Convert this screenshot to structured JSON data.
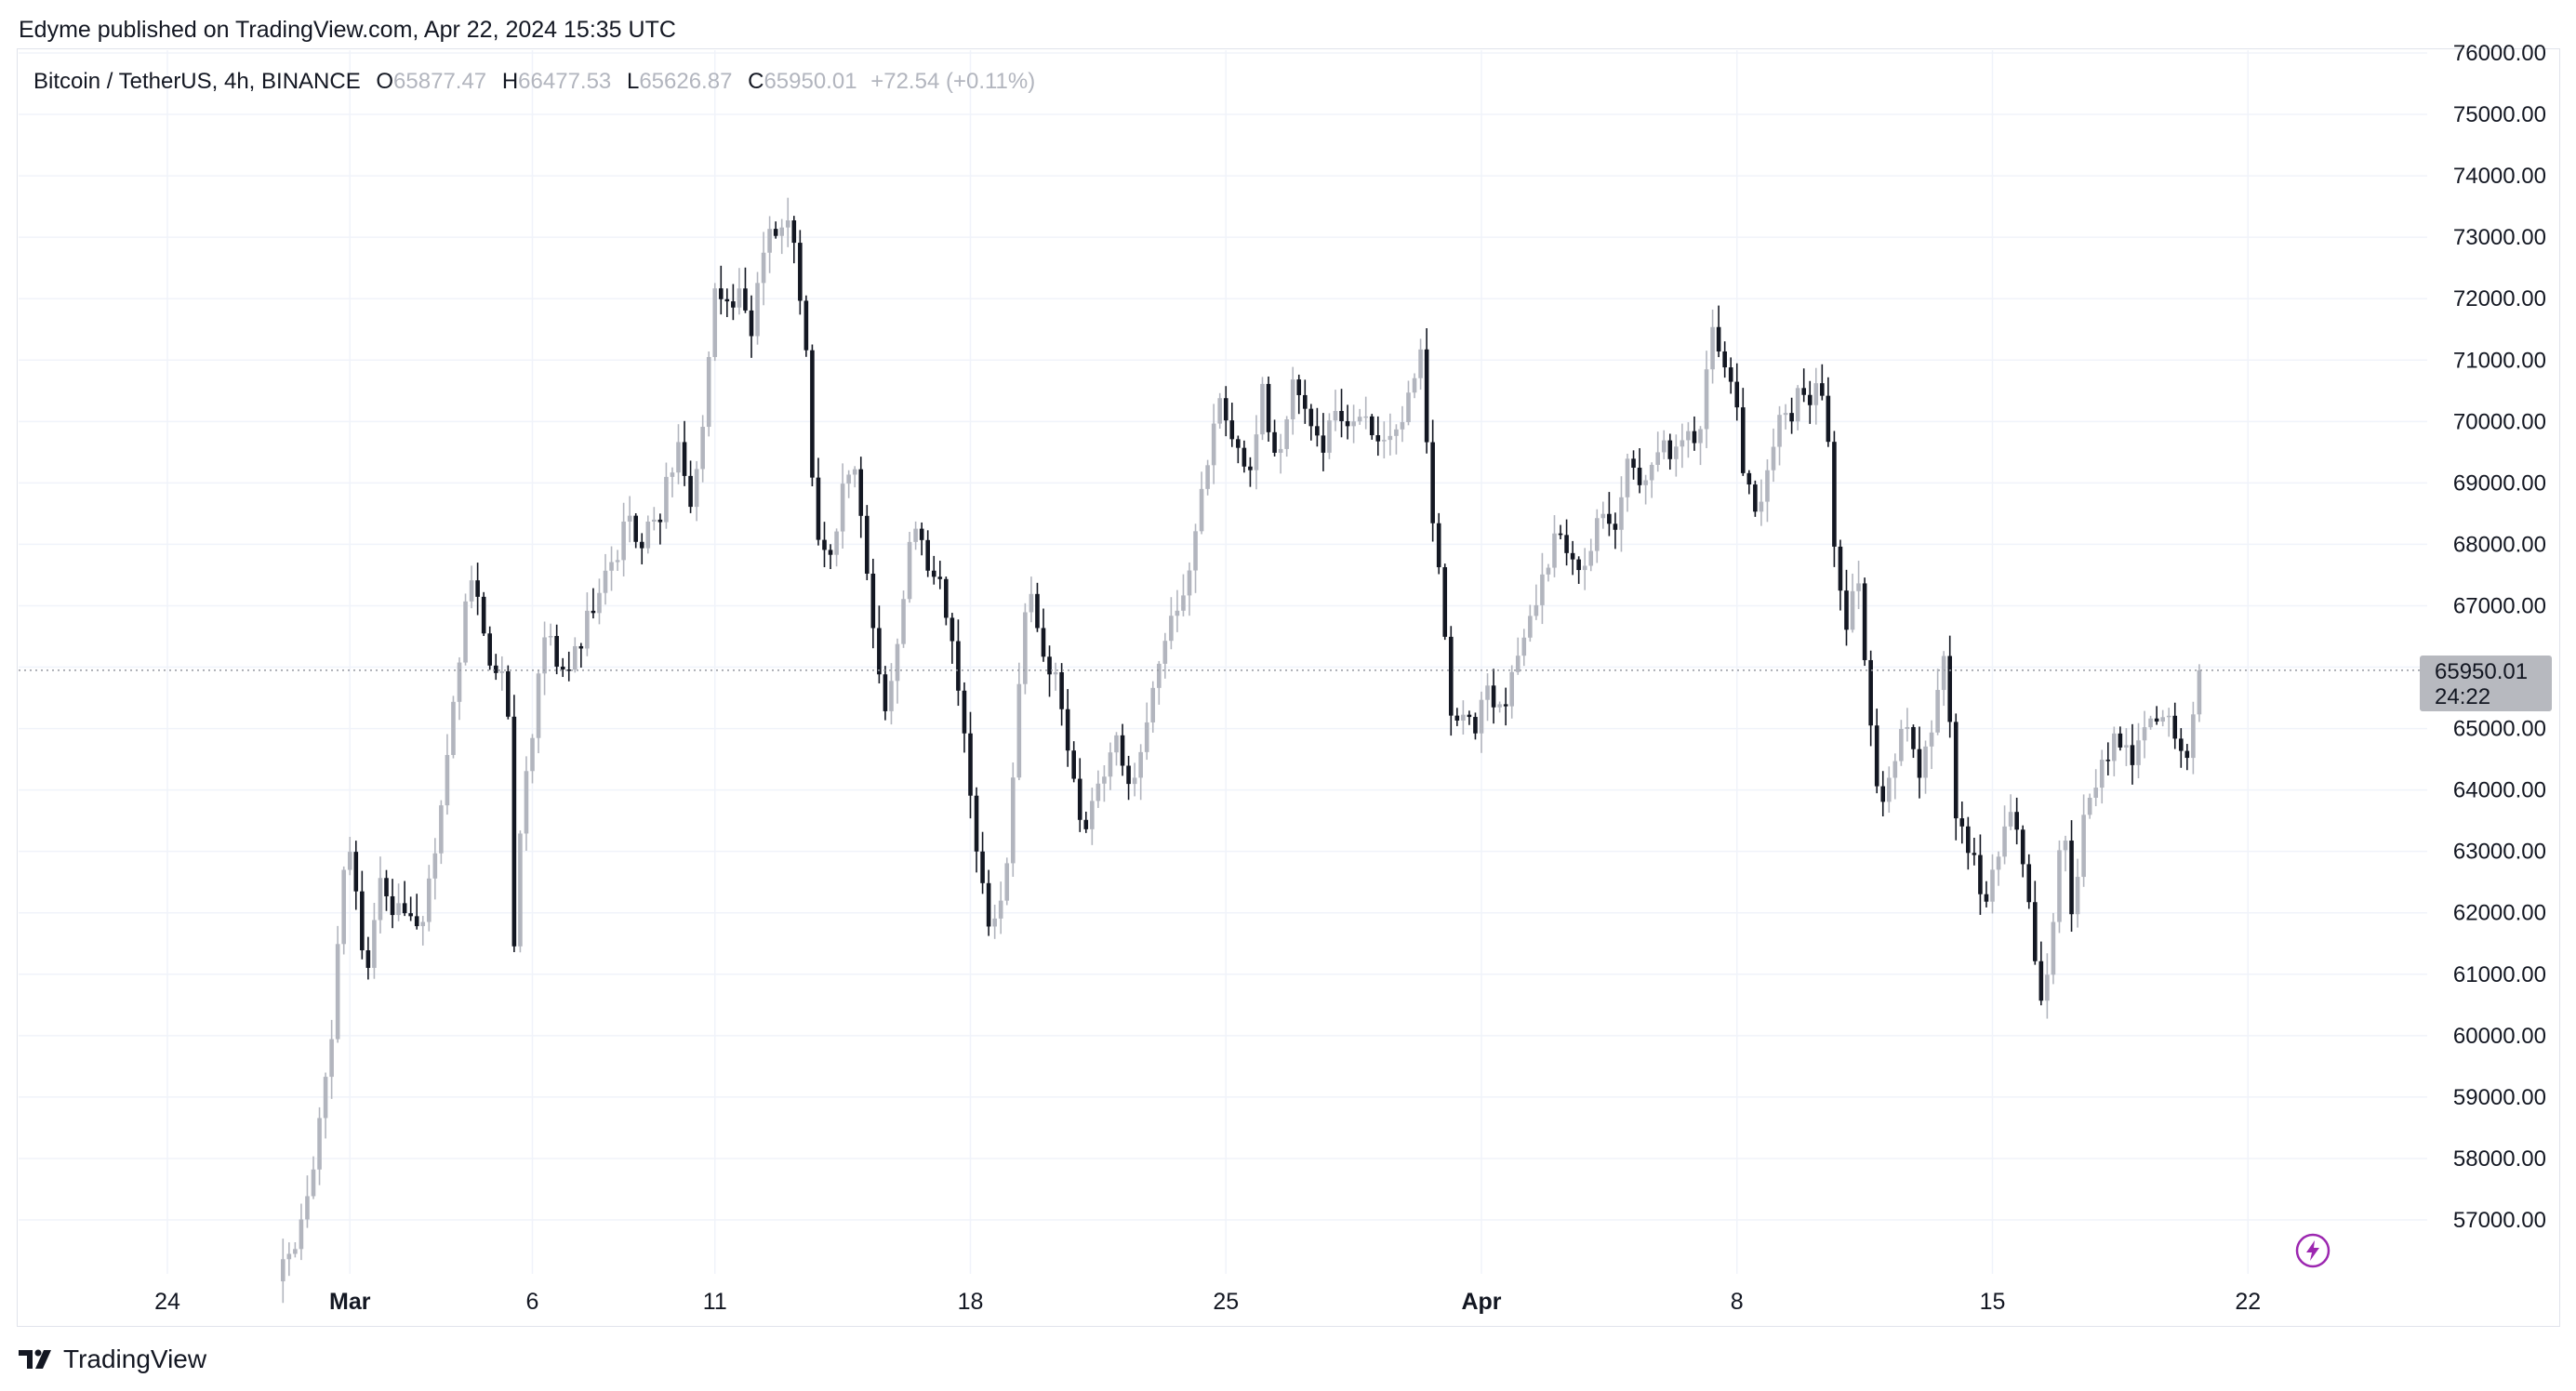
{
  "header": {
    "published": "Edyme published on TradingView.com, Apr 22, 2024 15:35 UTC"
  },
  "legend": {
    "symbol": "Bitcoin / TetherUS, 4h, BINANCE",
    "open_key": "O",
    "open": "65877.47",
    "high_key": "H",
    "high": "66477.53",
    "low_key": "L",
    "low": "65626.87",
    "close_key": "C",
    "close": "65950.01",
    "change": "+72.54 (+0.11%)"
  },
  "price_tag": {
    "price": "65950.01",
    "countdown": "24:22"
  },
  "footer": {
    "brand": "TradingView"
  },
  "colors": {
    "up": "#b2b5be",
    "down": "#131722",
    "grid": "#f0f3fa",
    "dotted": "#9598a1",
    "accent": "#9c27b0"
  },
  "chart_data": {
    "type": "candlestick",
    "ylim": [
      56000,
      76000
    ],
    "y_ticks": [
      "57000.00",
      "58000.00",
      "59000.00",
      "60000.00",
      "61000.00",
      "62000.00",
      "63000.00",
      "64000.00",
      "65000.00",
      "66000.00",
      "67000.00",
      "68000.00",
      "69000.00",
      "70000.00",
      "71000.00",
      "72000.00",
      "73000.00",
      "74000.00",
      "75000.00",
      "76000.00"
    ],
    "x_ticks": [
      {
        "label": "24",
        "day": -4,
        "bold": false
      },
      {
        "label": "Mar",
        "day": 1,
        "bold": true
      },
      {
        "label": "6",
        "day": 6,
        "bold": false
      },
      {
        "label": "11",
        "day": 11,
        "bold": false
      },
      {
        "label": "18",
        "day": 18,
        "bold": false
      },
      {
        "label": "25",
        "day": 25,
        "bold": false
      },
      {
        "label": "Apr",
        "day": 32,
        "bold": true
      },
      {
        "label": "8",
        "day": 39,
        "bold": false
      },
      {
        "label": "15",
        "day": 46,
        "bold": false
      },
      {
        "label": "22",
        "day": 53,
        "bold": false
      }
    ],
    "current_price": 65950.01,
    "anchors": [
      [
        -1.0,
        56000
      ],
      [
        -0.5,
        56600
      ],
      [
        -0.2,
        57300
      ],
      [
        0.0,
        57900
      ],
      [
        -0.4,
        56800
      ],
      [
        0.2,
        58600
      ],
      [
        0.5,
        60000
      ],
      [
        0.8,
        62500
      ],
      [
        1.0,
        62800
      ],
      [
        1.3,
        61700
      ],
      [
        1.5,
        61100
      ],
      [
        1.8,
        62500
      ],
      [
        2.2,
        62100
      ],
      [
        2.6,
        61900
      ],
      [
        3.0,
        61800
      ],
      [
        3.3,
        62900
      ],
      [
        3.7,
        64800
      ],
      [
        4.0,
        66000
      ],
      [
        4.3,
        67600
      ],
      [
        4.7,
        66300
      ],
      [
        5.0,
        66000
      ],
      [
        5.3,
        65900
      ],
      [
        5.5,
        61500
      ],
      [
        5.7,
        63600
      ],
      [
        6.0,
        64800
      ],
      [
        6.3,
        66700
      ],
      [
        6.7,
        66000
      ],
      [
        7.0,
        66000
      ],
      [
        7.4,
        66600
      ],
      [
        7.8,
        67300
      ],
      [
        8.2,
        67700
      ],
      [
        8.6,
        68400
      ],
      [
        9.0,
        68000
      ],
      [
        9.5,
        68500
      ],
      [
        10.0,
        69700
      ],
      [
        10.3,
        68400
      ],
      [
        10.6,
        69500
      ],
      [
        11.0,
        72100
      ],
      [
        11.4,
        71900
      ],
      [
        11.7,
        72300
      ],
      [
        12.0,
        71400
      ],
      [
        12.4,
        73000
      ],
      [
        12.8,
        73300
      ],
      [
        13.2,
        72900
      ],
      [
        13.5,
        71000
      ],
      [
        13.8,
        67900
      ],
      [
        14.1,
        67600
      ],
      [
        14.5,
        68800
      ],
      [
        14.8,
        69400
      ],
      [
        15.0,
        68600
      ],
      [
        15.4,
        66300
      ],
      [
        15.7,
        65200
      ],
      [
        16.0,
        66400
      ],
      [
        16.4,
        68400
      ],
      [
        16.8,
        67700
      ],
      [
        17.2,
        67400
      ],
      [
        17.6,
        66200
      ],
      [
        18.0,
        63700
      ],
      [
        18.3,
        62500
      ],
      [
        18.6,
        61700
      ],
      [
        19.0,
        62900
      ],
      [
        19.3,
        65500
      ],
      [
        19.6,
        67600
      ],
      [
        20.0,
        66200
      ],
      [
        20.4,
        65900
      ],
      [
        20.7,
        64400
      ],
      [
        21.1,
        63400
      ],
      [
        21.5,
        63900
      ],
      [
        22.0,
        65000
      ],
      [
        22.4,
        64000
      ],
      [
        22.8,
        64900
      ],
      [
        23.2,
        66200
      ],
      [
        23.6,
        66900
      ],
      [
        24.0,
        67700
      ],
      [
        24.4,
        69100
      ],
      [
        24.8,
        70500
      ],
      [
        25.2,
        69500
      ],
      [
        25.6,
        69100
      ],
      [
        26.0,
        70500
      ],
      [
        26.4,
        69300
      ],
      [
        26.8,
        70600
      ],
      [
        27.2,
        70200
      ],
      [
        27.6,
        69600
      ],
      [
        28.0,
        70100
      ],
      [
        28.4,
        69900
      ],
      [
        28.8,
        70300
      ],
      [
        29.2,
        69400
      ],
      [
        29.6,
        69700
      ],
      [
        30.0,
        70300
      ],
      [
        30.4,
        71100
      ],
      [
        30.6,
        68600
      ],
      [
        30.9,
        67200
      ],
      [
        31.2,
        64800
      ],
      [
        31.5,
        65400
      ],
      [
        31.8,
        64900
      ],
      [
        32.1,
        66000
      ],
      [
        32.4,
        65400
      ],
      [
        32.7,
        65500
      ],
      [
        33.0,
        66300
      ],
      [
        33.3,
        66800
      ],
      [
        33.6,
        67400
      ],
      [
        34.0,
        68000
      ],
      [
        34.4,
        67900
      ],
      [
        34.8,
        67400
      ],
      [
        35.2,
        68500
      ],
      [
        35.6,
        68100
      ],
      [
        36.0,
        69200
      ],
      [
        36.4,
        69100
      ],
      [
        36.8,
        69600
      ],
      [
        37.2,
        69400
      ],
      [
        37.6,
        69700
      ],
      [
        38.0,
        69900
      ],
      [
        38.3,
        71600
      ],
      [
        38.6,
        71200
      ],
      [
        38.9,
        70700
      ],
      [
        39.2,
        69200
      ],
      [
        39.5,
        68600
      ],
      [
        39.8,
        68900
      ],
      [
        40.1,
        70200
      ],
      [
        40.4,
        69900
      ],
      [
        40.7,
        70600
      ],
      [
        41.0,
        70400
      ],
      [
        41.4,
        70600
      ],
      [
        41.7,
        67600
      ],
      [
        42.0,
        66700
      ],
      [
        42.3,
        67400
      ],
      [
        42.6,
        65600
      ],
      [
        42.9,
        63700
      ],
      [
        43.2,
        64300
      ],
      [
        43.6,
        65100
      ],
      [
        44.0,
        64200
      ],
      [
        44.4,
        65100
      ],
      [
        44.7,
        66100
      ],
      [
        45.0,
        63600
      ],
      [
        45.4,
        63000
      ],
      [
        45.8,
        62000
      ],
      [
        46.2,
        63000
      ],
      [
        46.6,
        63700
      ],
      [
        47.0,
        62200
      ],
      [
        47.3,
        60400
      ],
      [
        47.6,
        61200
      ],
      [
        47.9,
        63600
      ],
      [
        48.2,
        61900
      ],
      [
        48.6,
        63900
      ],
      [
        49.0,
        64400
      ],
      [
        49.4,
        64800
      ],
      [
        49.8,
        64400
      ],
      [
        50.2,
        64900
      ],
      [
        50.6,
        65200
      ],
      [
        51.0,
        65000
      ],
      [
        51.3,
        64600
      ],
      [
        51.6,
        65700
      ],
      [
        51.8,
        65950.01
      ]
    ]
  }
}
